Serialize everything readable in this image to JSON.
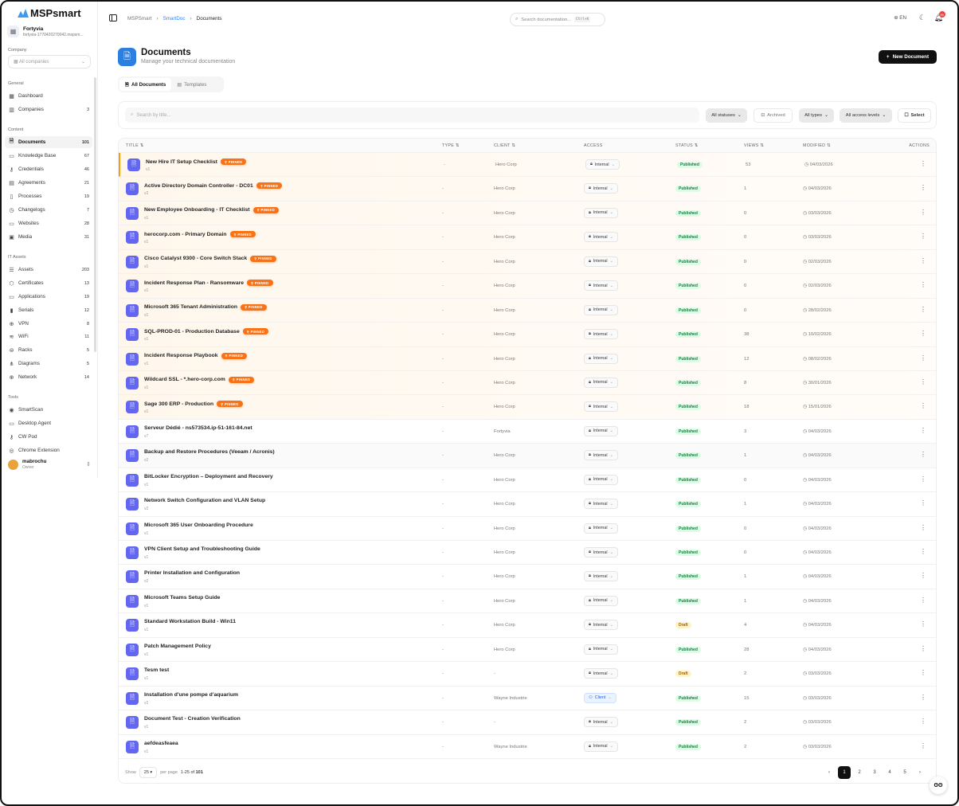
{
  "brand": {
    "name": "MSPsmart",
    "accent": "#3b82f6"
  },
  "org": {
    "name": "Fortyvia",
    "domain": "fortyvia-1770420270042.mspsm..."
  },
  "company": {
    "label": "Company",
    "value": "All companies"
  },
  "sidebar": {
    "sections": [
      {
        "label": "General",
        "items": [
          {
            "label": "Dashboard",
            "icon": "grid-icon",
            "count": ""
          },
          {
            "label": "Companies",
            "icon": "building-icon",
            "count": "3"
          }
        ]
      },
      {
        "label": "Content",
        "items": [
          {
            "label": "Documents",
            "icon": "document-icon",
            "count": "101",
            "active": true
          },
          {
            "label": "Knowledge Base",
            "icon": "book-icon",
            "count": "67"
          },
          {
            "label": "Credentials",
            "icon": "key-icon",
            "count": "46"
          },
          {
            "label": "Agreements",
            "icon": "file-contract-icon",
            "count": "21"
          },
          {
            "label": "Processes",
            "icon": "clipboard-icon",
            "count": "19"
          },
          {
            "label": "Changelogs",
            "icon": "clock-icon",
            "count": "7"
          },
          {
            "label": "Websites",
            "icon": "monitor-icon",
            "count": "28"
          },
          {
            "label": "Media",
            "icon": "image-icon",
            "count": "31"
          }
        ]
      },
      {
        "label": "IT Assets",
        "items": [
          {
            "label": "Assets",
            "icon": "server-icon",
            "count": "203"
          },
          {
            "label": "Certificates",
            "icon": "shield-icon",
            "count": "13"
          },
          {
            "label": "Applications",
            "icon": "app-window-icon",
            "count": "19"
          },
          {
            "label": "Serials",
            "icon": "barcode-icon",
            "count": "12"
          },
          {
            "label": "VPN",
            "icon": "globe-icon",
            "count": "8"
          },
          {
            "label": "WiFi",
            "icon": "wifi-icon",
            "count": "11"
          },
          {
            "label": "Racks",
            "icon": "rack-icon",
            "count": "5"
          },
          {
            "label": "Diagrams",
            "icon": "diagram-icon",
            "count": "5"
          },
          {
            "label": "Network",
            "icon": "network-icon",
            "count": "14"
          }
        ]
      },
      {
        "label": "Tools",
        "items": [
          {
            "label": "SmartScan",
            "icon": "radar-icon",
            "count": ""
          },
          {
            "label": "Desktop Agent",
            "icon": "monitor-icon",
            "count": ""
          },
          {
            "label": "CW Pod",
            "icon": "key-icon",
            "count": ""
          },
          {
            "label": "Chrome Extension",
            "icon": "chrome-icon",
            "count": ""
          }
        ]
      }
    ]
  },
  "user": {
    "name": "mabrochu",
    "role": "Owner"
  },
  "breadcrumb": [
    "MSPSmart",
    "SmartDoc",
    "Documents"
  ],
  "topbar": {
    "search_placeholder": "Search documentation...",
    "shortcut": "Ctrl+K",
    "language": "EN",
    "notifications": "99"
  },
  "page": {
    "title": "Documents",
    "subtitle": "Manage your technical documentation",
    "new_button": "New Document"
  },
  "tabs": [
    {
      "label": "All Documents",
      "active": true
    },
    {
      "label": "Templates"
    }
  ],
  "filters": {
    "search_placeholder": "Search by title...",
    "status": "All statuses",
    "archived": "Archived",
    "types": "All types",
    "access": "All access levels",
    "select": "Select"
  },
  "columns": [
    "TITLE",
    "TYPE",
    "CLIENT",
    "ACCESS",
    "STATUS",
    "VIEWS",
    "MODIFIED",
    "ACTIONS"
  ],
  "pinned_label": "PINNED",
  "rows": [
    {
      "title": "New Hire IT Setup Checklist",
      "ver": "v1",
      "pinned": true,
      "type": "-",
      "client": "Hero Corp",
      "access": "Internal",
      "status": "Published",
      "views": "53",
      "modified": "04/03/2026"
    },
    {
      "title": "Active Directory Domain Controller - DC01",
      "ver": "v2",
      "pinned": true,
      "type": "-",
      "client": "Hero Corp",
      "access": "Internal",
      "status": "Published",
      "views": "1",
      "modified": "04/03/2026"
    },
    {
      "title": "New Employee Onboarding - IT Checklist",
      "ver": "v1",
      "pinned": true,
      "type": "-",
      "client": "Hero Corp",
      "access": "Internal",
      "status": "Published",
      "views": "0",
      "modified": "03/03/2026"
    },
    {
      "title": "herocorp.com - Primary Domain",
      "ver": "v1",
      "pinned": true,
      "type": "-",
      "client": "Hero Corp",
      "access": "Internal",
      "status": "Published",
      "views": "0",
      "modified": "03/03/2026"
    },
    {
      "title": "Cisco Catalyst 9300 - Core Switch Stack",
      "ver": "v1",
      "pinned": true,
      "type": "-",
      "client": "Hero Corp",
      "access": "Internal",
      "status": "Published",
      "views": "0",
      "modified": "02/03/2026"
    },
    {
      "title": "Incident Response Plan - Ransomware",
      "ver": "v1",
      "pinned": true,
      "type": "-",
      "client": "Hero Corp",
      "access": "Internal",
      "status": "Published",
      "views": "0",
      "modified": "02/03/2026"
    },
    {
      "title": "Microsoft 365 Tenant Administration",
      "ver": "v1",
      "pinned": true,
      "type": "-",
      "client": "Hero Corp",
      "access": "Internal",
      "status": "Published",
      "views": "0",
      "modified": "28/02/2026"
    },
    {
      "title": "SQL-PROD-01 - Production Database",
      "ver": "v1",
      "pinned": true,
      "type": "-",
      "client": "Hero Corp",
      "access": "Internal",
      "status": "Published",
      "views": "38",
      "modified": "10/02/2026"
    },
    {
      "title": "Incident Response Playbook",
      "ver": "v1",
      "pinned": true,
      "type": "-",
      "client": "Hero Corp",
      "access": "Internal",
      "status": "Published",
      "views": "12",
      "modified": "08/02/2026"
    },
    {
      "title": "Wildcard SSL - *.hero-corp.com",
      "ver": "v1",
      "pinned": true,
      "type": "-",
      "client": "Hero Corp",
      "access": "Internal",
      "status": "Published",
      "views": "8",
      "modified": "30/01/2026"
    },
    {
      "title": "Sage 300 ERP - Production",
      "ver": "v1",
      "pinned": true,
      "type": "-",
      "client": "Hero Corp",
      "access": "Internal",
      "status": "Published",
      "views": "18",
      "modified": "15/01/2026"
    },
    {
      "title": "Serveur Dédié - ns573534.ip-51-161-84.net",
      "ver": "v7",
      "type": "-",
      "client": "Fortyvia",
      "access": "Internal",
      "status": "Published",
      "views": "3",
      "modified": "04/03/2026"
    },
    {
      "title": "Backup and Restore Procedures (Veeam / Acronis)",
      "ver": "v2",
      "type": "-",
      "client": "Hero Corp",
      "access": "Internal",
      "status": "Published",
      "views": "1",
      "modified": "04/03/2026"
    },
    {
      "title": "BitLocker Encryption – Deployment and Recovery",
      "ver": "v1",
      "type": "-",
      "client": "Hero Corp",
      "access": "Internal",
      "status": "Published",
      "views": "0",
      "modified": "04/03/2026"
    },
    {
      "title": "Network Switch Configuration and VLAN Setup",
      "ver": "v2",
      "type": "-",
      "client": "Hero Corp",
      "access": "Internal",
      "status": "Published",
      "views": "1",
      "modified": "04/03/2026"
    },
    {
      "title": "Microsoft 365 User Onboarding Procedure",
      "ver": "v1",
      "type": "-",
      "client": "Hero Corp",
      "access": "Internal",
      "status": "Published",
      "views": "0",
      "modified": "04/03/2026"
    },
    {
      "title": "VPN Client Setup and Troubleshooting Guide",
      "ver": "v1",
      "type": "-",
      "client": "Hero Corp",
      "access": "Internal",
      "status": "Published",
      "views": "0",
      "modified": "04/03/2026"
    },
    {
      "title": "Printer Installation and Configuration",
      "ver": "v2",
      "type": "-",
      "client": "Hero Corp",
      "access": "Internal",
      "status": "Published",
      "views": "1",
      "modified": "04/03/2026"
    },
    {
      "title": "Microsoft Teams Setup Guide",
      "ver": "v1",
      "type": "-",
      "client": "Hero Corp",
      "access": "Internal",
      "status": "Published",
      "views": "1",
      "modified": "04/03/2026"
    },
    {
      "title": "Standard Workstation Build - Win11",
      "ver": "v1",
      "type": "-",
      "client": "Hero Corp",
      "access": "Internal",
      "status": "Draft",
      "views": "4",
      "modified": "04/03/2026"
    },
    {
      "title": "Patch Management Policy",
      "ver": "v1",
      "type": "-",
      "client": "Hero Corp",
      "access": "Internal",
      "status": "Published",
      "views": "28",
      "modified": "04/03/2026"
    },
    {
      "title": "Tesm test",
      "ver": "v1",
      "type": "-",
      "client": "-",
      "access": "Internal",
      "status": "Draft",
      "views": "2",
      "modified": "03/03/2026"
    },
    {
      "title": "Installation d'une pompe d'aquarium",
      "ver": "v2",
      "type": "-",
      "client": "Wayne Industrie",
      "access": "Client",
      "status": "Published",
      "views": "15",
      "modified": "03/03/2026"
    },
    {
      "title": "Document Test - Creation Verification",
      "ver": "v1",
      "type": "-",
      "client": "-",
      "access": "Internal",
      "status": "Published",
      "views": "2",
      "modified": "03/03/2026"
    },
    {
      "title": "aefdeasfeaea",
      "ver": "v1",
      "type": "-",
      "client": "Wayne Industrie",
      "access": "Internal",
      "status": "Published",
      "views": "2",
      "modified": "03/03/2026"
    }
  ],
  "pagination": {
    "show": "Show",
    "per_page_value": "25",
    "per_page": "per page",
    "range": "1-25",
    "of": "of",
    "total": "101",
    "pages": [
      "1",
      "2",
      "3",
      "4",
      "5"
    ],
    "current": "1"
  }
}
